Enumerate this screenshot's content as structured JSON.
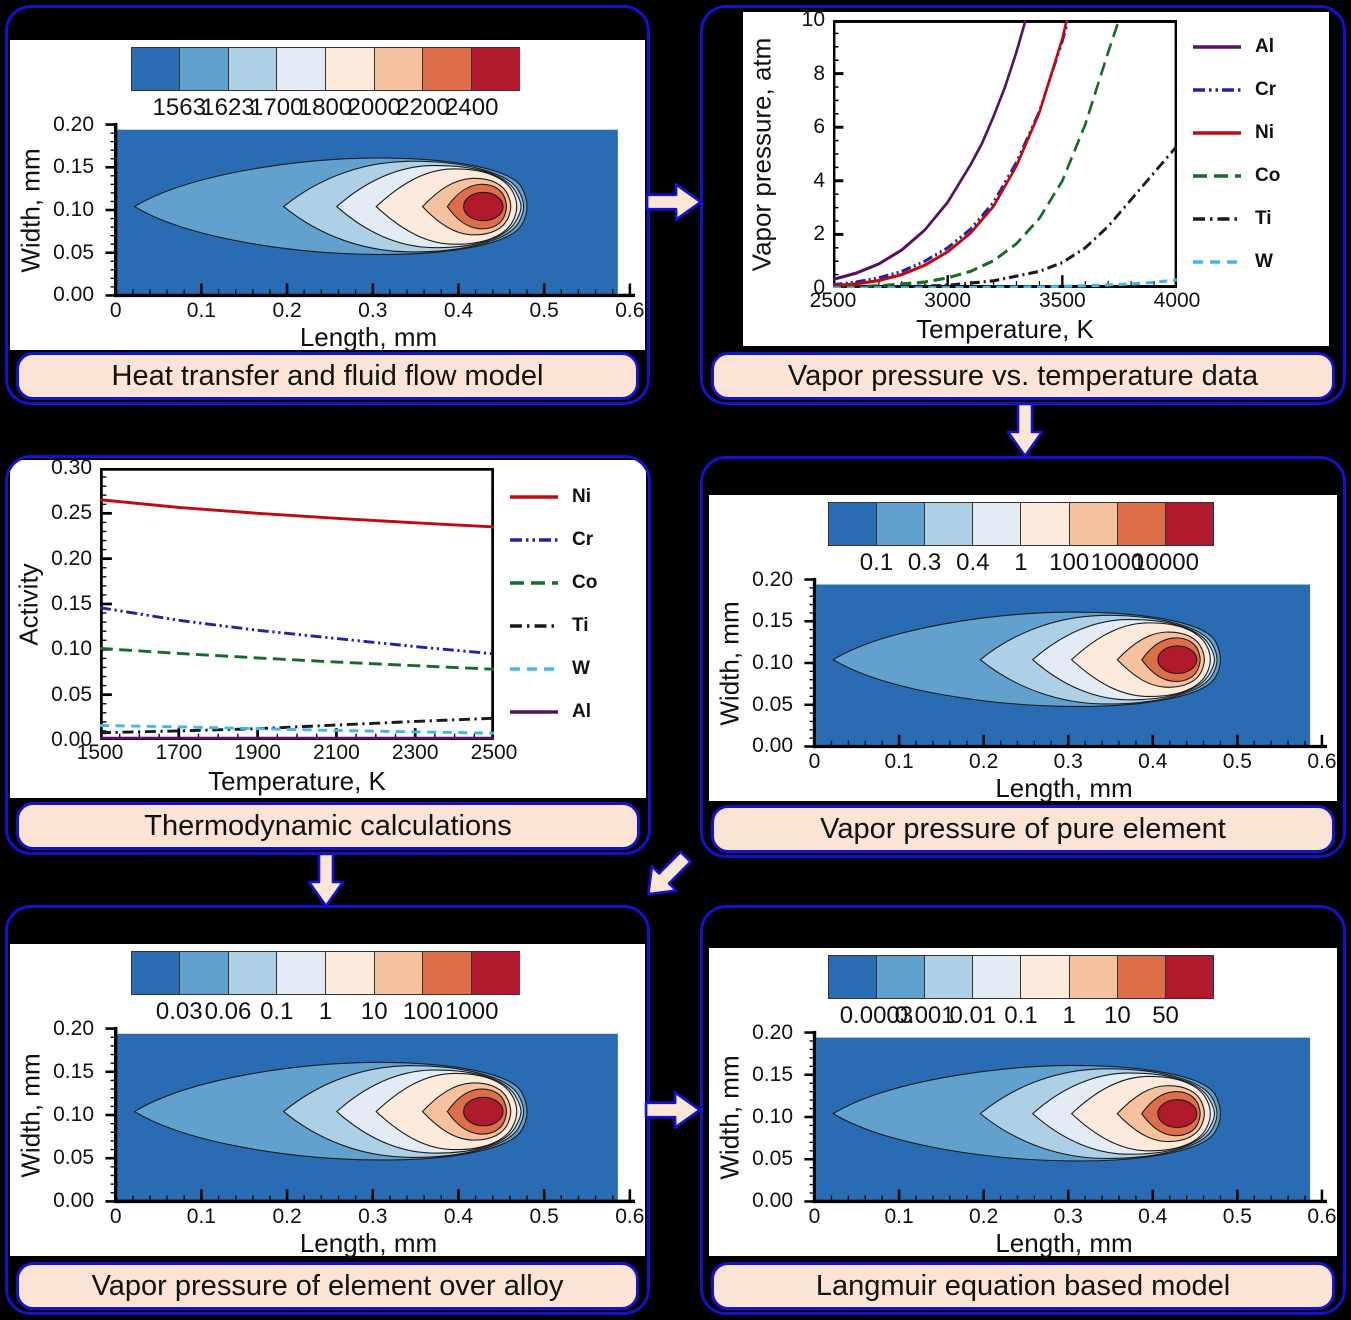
{
  "shared": {
    "panel_border_color": "#1411cf",
    "caption_bg": "#fbe3d6",
    "arrow_fill": "#fce6d8",
    "contour": {
      "xlabel": "Length, mm",
      "ylabel": "Width, mm",
      "x_ticks": [
        "0",
        "0.1",
        "0.2",
        "0.3",
        "0.4",
        "0.5",
        "0.6"
      ],
      "y_ticks": [
        "0.00",
        "0.05",
        "0.10",
        "0.15",
        "0.20"
      ],
      "colors": [
        "#2a6cb3",
        "#62a1cd",
        "#aed0e6",
        "#e3ecf4",
        "#fcebdd",
        "#f6c19e",
        "#dd6e49",
        "#b11a2c"
      ]
    }
  },
  "panels": {
    "heat": {
      "caption": "Heat transfer and fluid flow model"
    },
    "vp_data": {
      "caption": "Vapor pressure vs. temperature data"
    },
    "thermo": {
      "caption": "Thermodynamic calculations"
    },
    "vp_pure": {
      "caption": "Vapor pressure of pure element"
    },
    "vp_alloy": {
      "caption": "Vapor pressure of element over alloy"
    },
    "langmuir": {
      "caption": "Langmuir equation based model"
    }
  },
  "chart_data": [
    {
      "type": "contour",
      "title": "Heat transfer and fluid flow model",
      "xlabel": "Length, mm",
      "ylabel": "Width, mm",
      "xlim": [
        0,
        0.6
      ],
      "ylim": [
        0,
        0.2
      ],
      "x_ticks": [
        "0",
        "0.1",
        "0.2",
        "0.3",
        "0.4",
        "0.5",
        "0.6"
      ],
      "y_ticks": [
        "0.00",
        "0.05",
        "0.10",
        "0.15",
        "0.20"
      ],
      "levels": [
        "1563",
        "1623",
        "1700",
        "1800",
        "2000",
        "2200",
        "2400"
      ]
    },
    {
      "type": "line",
      "title": "Vapor pressure vs. temperature data",
      "xlabel": "Temperature, K",
      "ylabel": "Vapor pressure, atm",
      "xlim": [
        2500,
        4000
      ],
      "ylim": [
        0,
        10
      ],
      "x_ticks": [
        "2500",
        "3000",
        "3500",
        "4000"
      ],
      "y_ticks": [
        "0",
        "2",
        "4",
        "6",
        "8",
        "10"
      ],
      "x_minor": 100,
      "y_minor": 0.5,
      "legend_position": "right",
      "series": [
        {
          "name": "Al",
          "color": "#561261",
          "dash": "",
          "points": [
            [
              2500,
              0.32
            ],
            [
              2600,
              0.55
            ],
            [
              2700,
              0.9
            ],
            [
              2800,
              1.42
            ],
            [
              2900,
              2.16
            ],
            [
              3000,
              3.2
            ],
            [
              3100,
              4.6
            ],
            [
              3150,
              5.4
            ],
            [
              3200,
              6.4
            ],
            [
              3250,
              7.5
            ],
            [
              3300,
              8.8
            ],
            [
              3360,
              10.6
            ]
          ]
        },
        {
          "name": "Cr",
          "color": "#2320ae",
          "dash": "12 4 2.5 4 2.5 4",
          "points": [
            [
              2500,
              0.12
            ],
            [
              2600,
              0.22
            ],
            [
              2700,
              0.38
            ],
            [
              2800,
              0.62
            ],
            [
              2900,
              1.0
            ],
            [
              3000,
              1.5
            ],
            [
              3100,
              2.2
            ],
            [
              3200,
              3.2
            ],
            [
              3300,
              4.7
            ],
            [
              3400,
              6.6
            ],
            [
              3500,
              9.2
            ],
            [
              3545,
              10.6
            ]
          ]
        },
        {
          "name": "Ni",
          "color": "#c00a12",
          "dash": "",
          "points": [
            [
              2500,
              0.08
            ],
            [
              2600,
              0.15
            ],
            [
              2700,
              0.28
            ],
            [
              2800,
              0.5
            ],
            [
              2900,
              0.85
            ],
            [
              3000,
              1.35
            ],
            [
              3100,
              2.05
            ],
            [
              3200,
              3.05
            ],
            [
              3300,
              4.55
            ],
            [
              3400,
              6.55
            ],
            [
              3500,
              9.3
            ],
            [
              3535,
              10.6
            ]
          ]
        },
        {
          "name": "Co",
          "color": "#156c27",
          "dash": "14 7",
          "points": [
            [
              2500,
              0.02
            ],
            [
              2700,
              0.08
            ],
            [
              2900,
              0.22
            ],
            [
              3000,
              0.38
            ],
            [
              3100,
              0.62
            ],
            [
              3200,
              1.02
            ],
            [
              3300,
              1.65
            ],
            [
              3400,
              2.6
            ],
            [
              3500,
              4.0
            ],
            [
              3600,
              6.1
            ],
            [
              3700,
              8.8
            ],
            [
              3770,
              10.6
            ]
          ]
        },
        {
          "name": "Ti",
          "color": "#1a1a1a",
          "dash": "12 5 2.5 5",
          "points": [
            [
              2500,
              0.01
            ],
            [
              2800,
              0.04
            ],
            [
              3000,
              0.1
            ],
            [
              3200,
              0.27
            ],
            [
              3400,
              0.62
            ],
            [
              3500,
              0.95
            ],
            [
              3600,
              1.5
            ],
            [
              3700,
              2.3
            ],
            [
              3800,
              3.3
            ],
            [
              3900,
              4.3
            ],
            [
              4000,
              5.3
            ]
          ]
        },
        {
          "name": "W",
          "color": "#3db9e8",
          "dash": "10 7",
          "points": [
            [
              2500,
              0.0
            ],
            [
              3000,
              0.01
            ],
            [
              3400,
              0.04
            ],
            [
              3600,
              0.08
            ],
            [
              3800,
              0.15
            ],
            [
              3900,
              0.21
            ],
            [
              4000,
              0.3
            ]
          ]
        }
      ]
    },
    {
      "type": "line",
      "title": "Thermodynamic calculations",
      "xlabel": "Temperature, K",
      "ylabel": "Activity",
      "xlim": [
        1500,
        2500
      ],
      "ylim": [
        0,
        0.3
      ],
      "x_ticks": [
        "1500",
        "1700",
        "1900",
        "2100",
        "2300",
        "2500"
      ],
      "y_ticks": [
        "0.00",
        "0.05",
        "0.10",
        "0.15",
        "0.20",
        "0.25",
        "0.30"
      ],
      "x_minor": 50,
      "y_minor": 0.01,
      "legend_position": "right",
      "series": [
        {
          "name": "Ni",
          "color": "#c00a12",
          "dash": "",
          "points": [
            [
              1500,
              0.265
            ],
            [
              1700,
              0.2565
            ],
            [
              1900,
              0.25
            ],
            [
              2100,
              0.2445
            ],
            [
              2300,
              0.2395
            ],
            [
              2500,
              0.235
            ]
          ]
        },
        {
          "name": "Cr",
          "color": "#2320ae",
          "dash": "12 4 2.5 4 2.5 4",
          "points": [
            [
              1500,
              0.146
            ],
            [
              1700,
              0.132
            ],
            [
              1900,
              0.121
            ],
            [
              2100,
              0.112
            ],
            [
              2300,
              0.103
            ],
            [
              2500,
              0.095
            ]
          ]
        },
        {
          "name": "Co",
          "color": "#156c27",
          "dash": "14 7",
          "points": [
            [
              1500,
              0.101
            ],
            [
              1700,
              0.0955
            ],
            [
              1900,
              0.0905
            ],
            [
              2100,
              0.086
            ],
            [
              2300,
              0.082
            ],
            [
              2500,
              0.078
            ]
          ]
        },
        {
          "name": "Ti",
          "color": "#1a1a1a",
          "dash": "12 5 2.5 5",
          "points": [
            [
              1500,
              0.008
            ],
            [
              1700,
              0.01
            ],
            [
              1900,
              0.0125
            ],
            [
              2100,
              0.0165
            ],
            [
              2300,
              0.0205
            ],
            [
              2500,
              0.024
            ]
          ]
        },
        {
          "name": "W",
          "color": "#3db9e8",
          "dash": "10 7",
          "points": [
            [
              1500,
              0.016
            ],
            [
              1700,
              0.0145
            ],
            [
              1900,
              0.0125
            ],
            [
              2100,
              0.0105
            ],
            [
              2300,
              0.009
            ],
            [
              2500,
              0.0075
            ]
          ]
        },
        {
          "name": "Al",
          "color": "#561261",
          "dash": "",
          "points": [
            [
              1500,
              0.002
            ],
            [
              2500,
              0.002
            ]
          ]
        }
      ]
    },
    {
      "type": "contour",
      "title": "Vapor pressure of pure element",
      "xlabel": "Length, mm",
      "ylabel": "Width, mm",
      "xlim": [
        0,
        0.6
      ],
      "ylim": [
        0,
        0.2
      ],
      "x_ticks": [
        "0",
        "0.1",
        "0.2",
        "0.3",
        "0.4",
        "0.5",
        "0.6"
      ],
      "y_ticks": [
        "0.00",
        "0.05",
        "0.10",
        "0.15",
        "0.20"
      ],
      "levels": [
        "0.1",
        "0.3",
        "0.4",
        "1",
        "100",
        "1000",
        "10000"
      ]
    },
    {
      "type": "contour",
      "title": "Vapor pressure of element over alloy",
      "xlabel": "Length, mm",
      "ylabel": "Width, mm",
      "xlim": [
        0,
        0.6
      ],
      "ylim": [
        0,
        0.2
      ],
      "x_ticks": [
        "0",
        "0.1",
        "0.2",
        "0.3",
        "0.4",
        "0.5",
        "0.6"
      ],
      "y_ticks": [
        "0.00",
        "0.05",
        "0.10",
        "0.15",
        "0.20"
      ],
      "levels": [
        "0.03",
        "0.06",
        "0.1",
        "1",
        "10",
        "100",
        "1000"
      ]
    },
    {
      "type": "contour",
      "title": "Langmuir equation based model",
      "xlabel": "Length, mm",
      "ylabel": "Width, mm",
      "xlim": [
        0,
        0.6
      ],
      "ylim": [
        0,
        0.2
      ],
      "x_ticks": [
        "0",
        "0.1",
        "0.2",
        "0.3",
        "0.4",
        "0.5",
        "0.6"
      ],
      "y_ticks": [
        "0.00",
        "0.05",
        "0.10",
        "0.15",
        "0.20"
      ],
      "levels": [
        "0.0003",
        "0.001",
        "0.01",
        "0.1",
        "1",
        "10",
        "50"
      ]
    }
  ]
}
